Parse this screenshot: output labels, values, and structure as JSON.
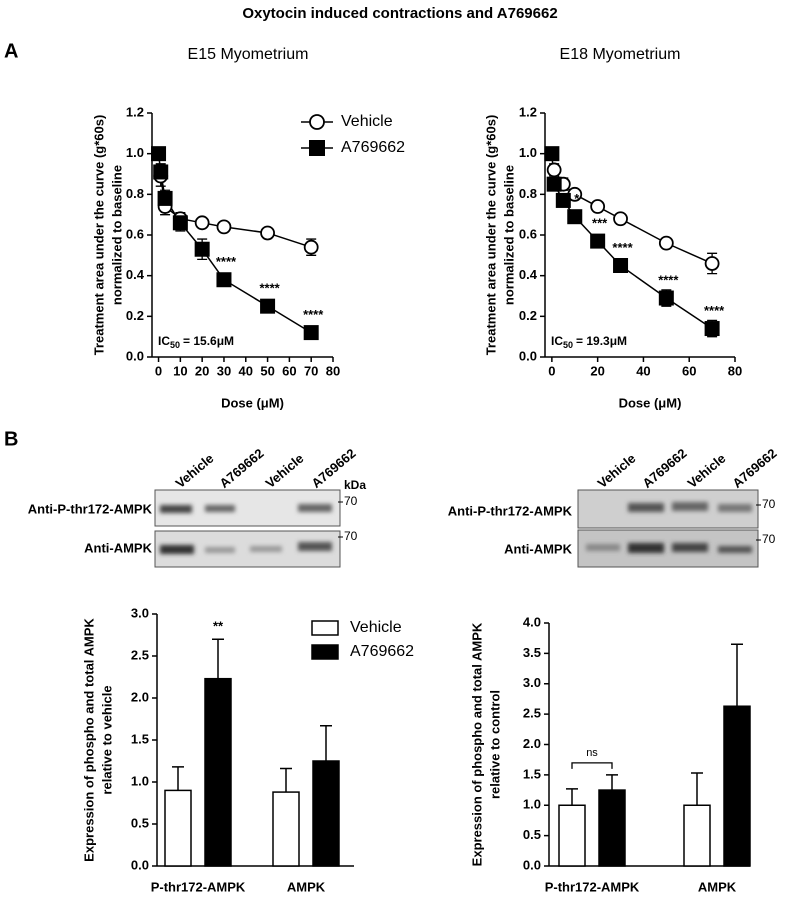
{
  "title": "Oxytocin induced contractions and A769662",
  "panels": [
    "A",
    "B"
  ],
  "blots": [
    {
      "lanes": [
        "Vehicle",
        "A769662",
        "Vehicle",
        "A769662"
      ],
      "rows": [
        "Anti-P-thr172-AMPK",
        "Anti-AMPK"
      ],
      "unit": "kDa",
      "markers": [
        "70",
        "70"
      ]
    },
    {
      "lanes": [
        "Vehicle",
        "A769662",
        "Vehicle",
        "A769662"
      ],
      "rows": [
        "Anti-P-thr172-AMPK",
        "Anti-AMPK"
      ],
      "markers": [
        "70",
        "70"
      ]
    }
  ],
  "chart_data": [
    {
      "type": "line",
      "title": "E15 Myometrium",
      "xlabel": "Dose (μM)",
      "ylabel": [
        "Treatment area under the curve (g*60s)",
        "normalized to baseline"
      ],
      "xlim": [
        -3,
        80
      ],
      "xticks": [
        0,
        10,
        20,
        30,
        40,
        50,
        60,
        70,
        80
      ],
      "ylim": [
        0,
        1.2
      ],
      "yticks": [
        {
          "value": 0,
          "label": "0.0"
        },
        0.2,
        0.4,
        0.6,
        0.8,
        {
          "value": 1,
          "label": "1.0"
        },
        1.2
      ],
      "legend": "upper right",
      "series": [
        {
          "name": "Vehicle",
          "color": "#000000",
          "marker": "circle",
          "x": [
            1,
            3,
            10,
            20,
            30,
            50,
            70
          ],
          "values": [
            0.89,
            0.74,
            0.68,
            0.66,
            0.64,
            0.61,
            0.54
          ],
          "errors": [
            0.05,
            0.04,
            0.03,
            0.02,
            0.02,
            0.02,
            0.04
          ]
        },
        {
          "name": "A769662",
          "color": "#000000",
          "marker": "square",
          "x": [
            0,
            1,
            3,
            10,
            20,
            30,
            50,
            70
          ],
          "values": [
            1.0,
            0.91,
            0.78,
            0.66,
            0.53,
            0.38,
            0.25,
            0.12
          ],
          "errors": [
            0.03,
            0.04,
            0.04,
            0.04,
            0.05,
            0.03,
            0.03,
            0.03
          ]
        }
      ],
      "annotations": [
        {
          "text": "****",
          "x": 30
        },
        {
          "text": "****",
          "x": 50
        },
        {
          "text": "****",
          "x": 70
        }
      ],
      "ic50": {
        "text": "IC",
        "sub": "50",
        "rest": "= 15.6μM"
      }
    },
    {
      "type": "line",
      "title": "E18 Myometrium",
      "xlabel": "Dose (μM)",
      "ylabel": [
        "Treatment area under the curve (g*60s)",
        "normalized to baseline"
      ],
      "xlim": [
        -3,
        80
      ],
      "xticks": [
        0,
        20,
        40,
        60,
        80
      ],
      "ylim": [
        0,
        1.2
      ],
      "yticks": [
        {
          "value": 0,
          "label": "0.0"
        },
        0.2,
        0.4,
        0.6,
        0.8,
        {
          "value": 1,
          "label": "1.0"
        },
        1.2
      ],
      "legend": "none",
      "series": [
        {
          "name": "Vehicle",
          "color": "#000000",
          "marker": "circle",
          "x": [
            1,
            5,
            10,
            20,
            30,
            50,
            70
          ],
          "values": [
            0.92,
            0.85,
            0.8,
            0.74,
            0.68,
            0.56,
            0.46
          ],
          "errors": [
            0.03,
            0.03,
            0.02,
            0.02,
            0.02,
            0.02,
            0.05
          ]
        },
        {
          "name": "A769662",
          "color": "#000000",
          "marker": "square",
          "x": [
            0,
            1,
            5,
            10,
            20,
            30,
            50,
            70
          ],
          "values": [
            1.0,
            0.85,
            0.77,
            0.69,
            0.57,
            0.45,
            0.29,
            0.14
          ],
          "errors": [
            0.02,
            0.03,
            0.03,
            0.02,
            0.02,
            0.02,
            0.04,
            0.04
          ]
        }
      ],
      "annotations": [
        {
          "text": "*",
          "x": 10
        },
        {
          "text": "***",
          "x": 20
        },
        {
          "text": "****",
          "x": 30
        },
        {
          "text": "****",
          "x": 50
        },
        {
          "text": "****",
          "x": 70
        }
      ],
      "ic50": {
        "text": "IC",
        "sub": "50",
        "rest": "= 19.3μM"
      }
    },
    {
      "type": "bar",
      "ylabel": [
        "Expression of phospho and total AMPK",
        "relative to vehicle"
      ],
      "categories": [
        "P-thr172-AMPK",
        "AMPK"
      ],
      "ylim": [
        0,
        3
      ],
      "yticks": [
        {
          "value": 0,
          "label": "0.0"
        },
        0.5,
        {
          "value": 1,
          "label": "1.0"
        },
        1.5,
        {
          "value": 2,
          "label": "2.0"
        },
        2.5,
        {
          "value": 3,
          "label": "3.0"
        }
      ],
      "legend": "upper right",
      "series": [
        {
          "name": "Vehicle",
          "color": "#ffffff",
          "values": [
            0.9,
            0.88
          ],
          "errors": [
            0.28,
            0.28
          ]
        },
        {
          "name": "A769662",
          "color": "#000000",
          "values": [
            2.23,
            1.25
          ],
          "errors": [
            0.47,
            0.42
          ]
        }
      ],
      "annotations": [
        {
          "text": "**",
          "category": "P-thr172-AMPK"
        }
      ]
    },
    {
      "type": "bar",
      "ylabel": [
        "Expression of phospho and total AMPK",
        "relative to control"
      ],
      "categories": [
        "P-thr172-AMPK",
        "AMPK"
      ],
      "ylim": [
        0,
        4
      ],
      "yticks": [
        {
          "value": 0,
          "label": "0.0"
        },
        0.5,
        {
          "value": 1,
          "label": "1.0"
        },
        1.5,
        {
          "value": 2,
          "label": "2.0"
        },
        2.5,
        {
          "value": 3,
          "label": "3.0"
        },
        3.5,
        {
          "value": 4,
          "label": "4.0"
        }
      ],
      "legend": "none",
      "series": [
        {
          "name": "Vehicle",
          "color": "#ffffff",
          "values": [
            1.0,
            1.0
          ],
          "errors": [
            0.27,
            0.53
          ]
        },
        {
          "name": "A769662",
          "color": "#000000",
          "values": [
            1.25,
            2.63
          ],
          "errors": [
            0.25,
            1.02
          ]
        }
      ],
      "annotations": [
        {
          "text": "ns",
          "category": "P-thr172-AMPK",
          "bracket": true
        }
      ]
    }
  ]
}
